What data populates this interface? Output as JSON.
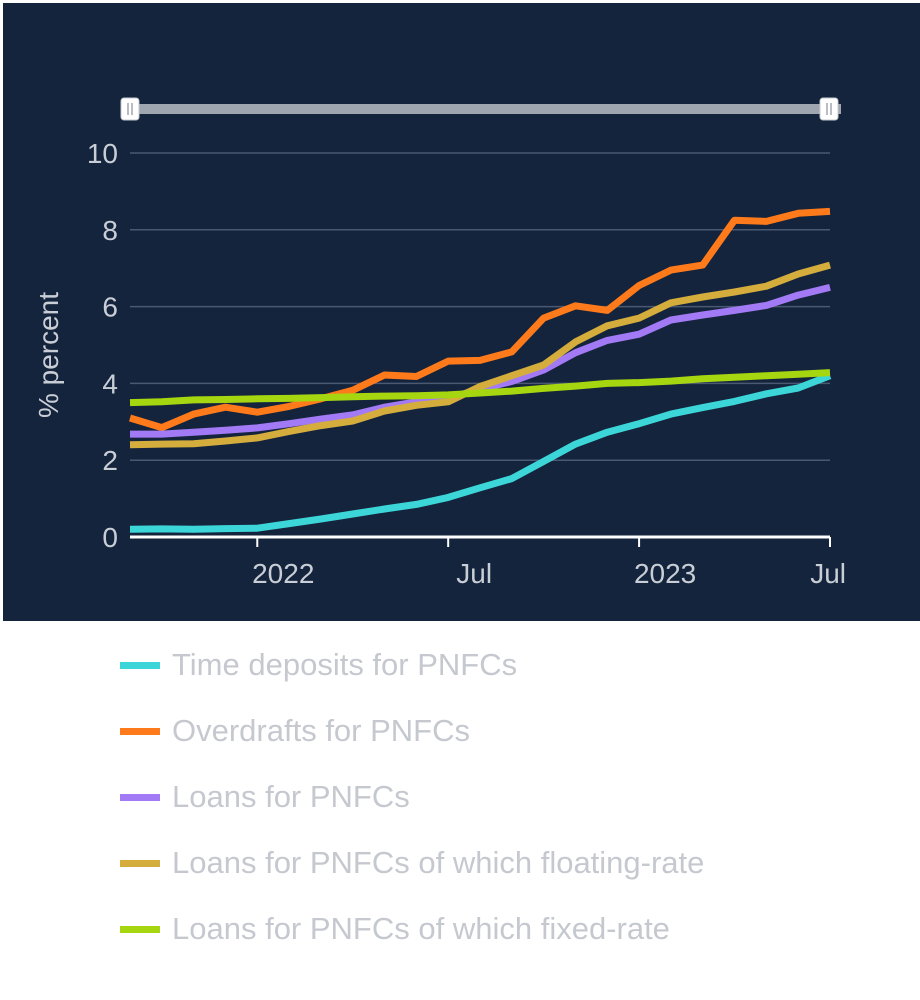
{
  "chart_data": {
    "type": "line",
    "title": "",
    "xlabel": "",
    "ylabel": "% percent",
    "ylim": [
      0,
      10
    ],
    "yticks": [
      0,
      2,
      4,
      6,
      8,
      10
    ],
    "xlim": [
      "2021-09",
      "2023-07"
    ],
    "xticks": [
      {
        "label": "2022",
        "date": "2022-01"
      },
      {
        "label": "Jul",
        "date": "2022-07"
      },
      {
        "label": "2023",
        "date": "2023-01"
      },
      {
        "label": "Jul",
        "date": "2023-07"
      }
    ],
    "x": [
      "2021-09",
      "2021-10",
      "2021-11",
      "2021-12",
      "2022-01",
      "2022-02",
      "2022-03",
      "2022-04",
      "2022-05",
      "2022-06",
      "2022-07",
      "2022-08",
      "2022-09",
      "2022-10",
      "2022-11",
      "2022-12",
      "2023-01",
      "2023-02",
      "2023-03",
      "2023-04",
      "2023-05",
      "2023-06",
      "2023-07"
    ],
    "grid": true,
    "legend_position": "bottom",
    "series": [
      {
        "name": "Time deposits for PNFCs",
        "color": "#3dd6d8",
        "values": [
          0.2,
          0.21,
          0.2,
          0.22,
          0.23,
          0.35,
          0.47,
          0.6,
          0.73,
          0.85,
          1.03,
          1.28,
          1.52,
          1.97,
          2.42,
          2.73,
          2.95,
          3.2,
          3.37,
          3.53,
          3.73,
          3.88,
          4.2
        ]
      },
      {
        "name": "Overdrafts for PNFCs",
        "color": "#ff7a1a",
        "values": [
          3.1,
          2.85,
          3.2,
          3.38,
          3.25,
          3.4,
          3.6,
          3.82,
          4.22,
          4.18,
          4.58,
          4.6,
          4.82,
          5.7,
          6.02,
          5.9,
          6.55,
          6.95,
          7.08,
          8.25,
          8.22,
          8.43,
          8.48
        ]
      },
      {
        "name": "Loans for PNFCs",
        "color": "#a37af5",
        "values": [
          2.68,
          2.68,
          2.73,
          2.78,
          2.84,
          2.95,
          3.07,
          3.18,
          3.38,
          3.52,
          3.62,
          3.85,
          4.05,
          4.35,
          4.8,
          5.12,
          5.28,
          5.65,
          5.78,
          5.9,
          6.03,
          6.3,
          6.5
        ]
      },
      {
        "name": "Loans for PNFCs of which floating-rate",
        "color": "#d4ad3c",
        "values": [
          2.4,
          2.42,
          2.43,
          2.5,
          2.58,
          2.75,
          2.9,
          3.02,
          3.28,
          3.43,
          3.52,
          3.92,
          4.2,
          4.48,
          5.08,
          5.5,
          5.7,
          6.1,
          6.25,
          6.38,
          6.53,
          6.85,
          7.08
        ]
      },
      {
        "name": "Loans for PNFCs of which fixed-rate",
        "color": "#a6d60f",
        "values": [
          3.5,
          3.52,
          3.57,
          3.58,
          3.6,
          3.61,
          3.63,
          3.65,
          3.67,
          3.68,
          3.7,
          3.75,
          3.8,
          3.87,
          3.93,
          4.0,
          4.02,
          4.06,
          4.12,
          4.16,
          4.2,
          4.24,
          4.28
        ]
      }
    ]
  }
}
